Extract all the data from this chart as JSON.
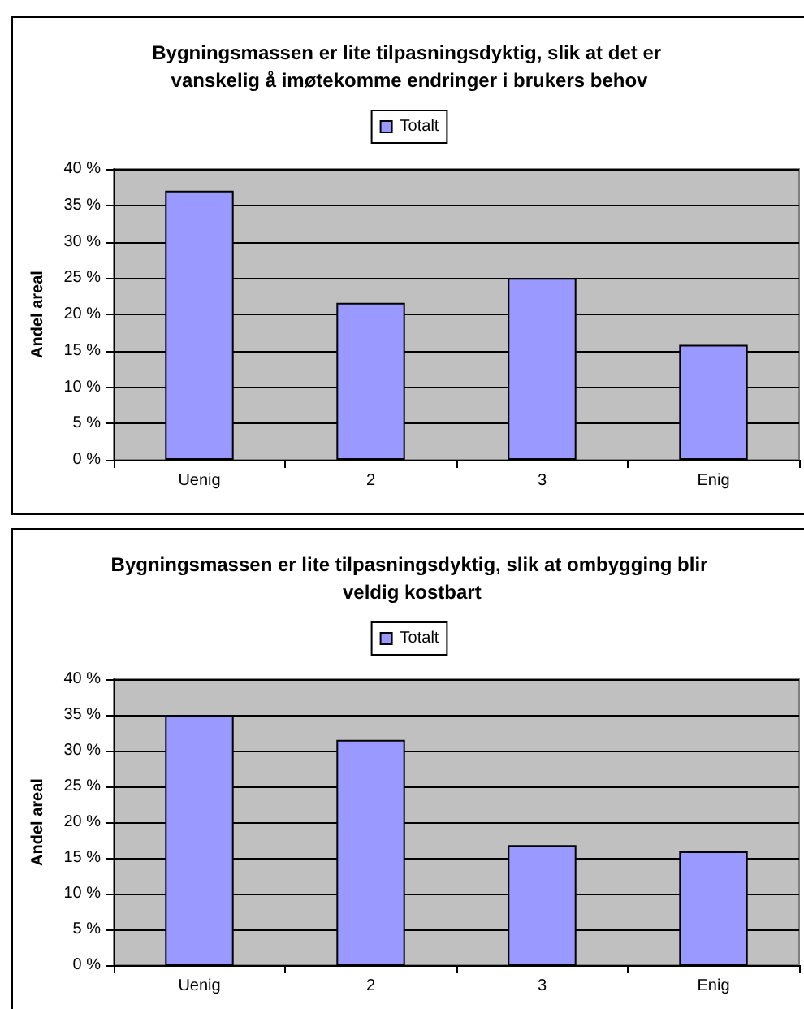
{
  "chart_data": [
    {
      "type": "bar",
      "title": "Bygningsmassen er lite tilpasningsdyktig, slik at det er vanskelig å imøtekomme endringer i brukers behov",
      "ylabel": "Andel areal",
      "categories": [
        "Uenig",
        "2",
        "3",
        "Enig"
      ],
      "series": [
        {
          "name": "Totalt",
          "color": "#9999ff",
          "values": [
            37,
            21.6,
            25,
            15.8
          ]
        }
      ],
      "ylim": [
        0,
        40
      ],
      "yticks": [
        {
          "value": 0,
          "label": "0 %"
        },
        {
          "value": 5,
          "label": "5 %"
        },
        {
          "value": 10,
          "label": "10 %"
        },
        {
          "value": 15,
          "label": "15 %"
        },
        {
          "value": 20,
          "label": "20 %"
        },
        {
          "value": 25,
          "label": "25 %"
        },
        {
          "value": 30,
          "label": "30 %"
        },
        {
          "value": 35,
          "label": "35 %"
        },
        {
          "value": 40,
          "label": "40 %"
        }
      ],
      "grid": "y",
      "legend": "top"
    },
    {
      "type": "bar",
      "title": "Bygningsmassen er lite tilpasningsdyktig, slik at ombygging blir veldig kostbart",
      "ylabel": "Andel areal",
      "categories": [
        "Uenig",
        "2",
        "3",
        "Enig"
      ],
      "series": [
        {
          "name": "Totalt",
          "color": "#9999ff",
          "values": [
            35,
            31.5,
            16.8,
            15.9
          ]
        }
      ],
      "ylim": [
        0,
        40
      ],
      "yticks": [
        {
          "value": 0,
          "label": "0 %"
        },
        {
          "value": 5,
          "label": "5 %"
        },
        {
          "value": 10,
          "label": "10 %"
        },
        {
          "value": 15,
          "label": "15 %"
        },
        {
          "value": 20,
          "label": "20 %"
        },
        {
          "value": 25,
          "label": "25 %"
        },
        {
          "value": 30,
          "label": "30 %"
        },
        {
          "value": 35,
          "label": "35 %"
        },
        {
          "value": 40,
          "label": "40 %"
        }
      ],
      "grid": "y",
      "legend": "top"
    }
  ]
}
